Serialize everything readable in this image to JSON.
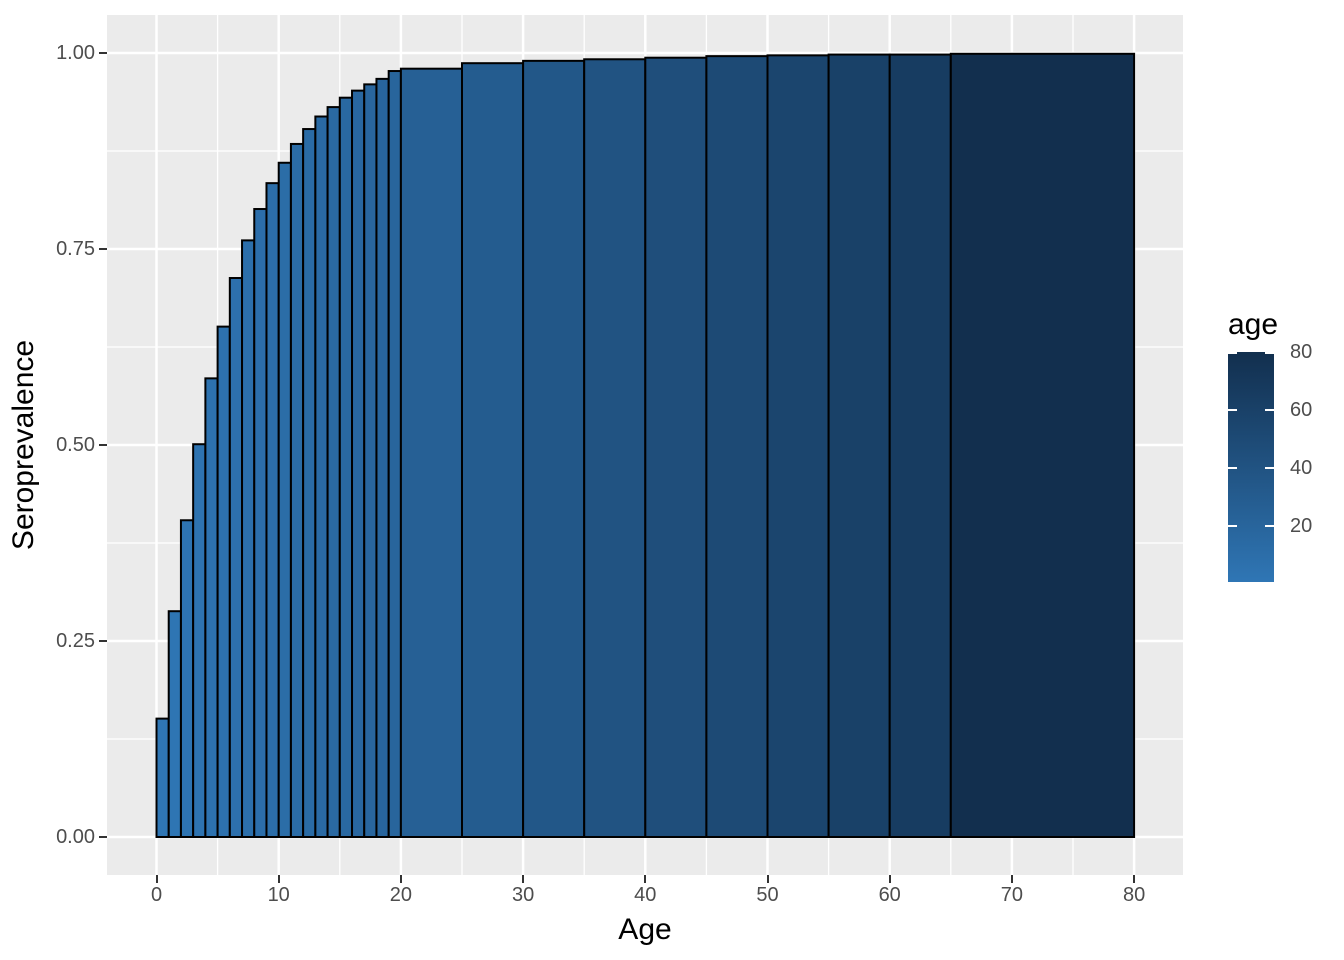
{
  "chart_data": {
    "type": "bar",
    "title": "",
    "xlabel": "Age",
    "ylabel": "Seroprevalence",
    "x_major_ticks": [
      0,
      10,
      20,
      30,
      40,
      50,
      60,
      70,
      80
    ],
    "x_tick_labels": [
      "0",
      "10",
      "20",
      "30",
      "40",
      "50",
      "60",
      "70",
      "80"
    ],
    "x_minor_ticks": [
      5,
      15,
      25,
      35,
      45,
      55,
      65,
      75
    ],
    "y_major_ticks": [
      0,
      0.25,
      0.5,
      0.75,
      1.0
    ],
    "y_tick_labels": [
      "0.00",
      "0.25",
      "0.50",
      "0.75",
      "1.00"
    ],
    "y_minor_ticks": [
      0.125,
      0.375,
      0.625,
      0.875
    ],
    "xlim": [
      -4,
      84
    ],
    "ylim": [
      -0.05,
      1.05
    ],
    "grid": "on",
    "bars": [
      {
        "x0": 0,
        "x1": 1,
        "value": 0.151
      },
      {
        "x0": 1,
        "x1": 2,
        "value": 0.288
      },
      {
        "x0": 2,
        "x1": 3,
        "value": 0.404
      },
      {
        "x0": 3,
        "x1": 4,
        "value": 0.501
      },
      {
        "x0": 4,
        "x1": 5,
        "value": 0.585
      },
      {
        "x0": 5,
        "x1": 6,
        "value": 0.651
      },
      {
        "x0": 6,
        "x1": 7,
        "value": 0.713
      },
      {
        "x0": 7,
        "x1": 8,
        "value": 0.761
      },
      {
        "x0": 8,
        "x1": 9,
        "value": 0.801
      },
      {
        "x0": 9,
        "x1": 10,
        "value": 0.834
      },
      {
        "x0": 10,
        "x1": 11,
        "value": 0.86
      },
      {
        "x0": 11,
        "x1": 12,
        "value": 0.884
      },
      {
        "x0": 12,
        "x1": 13,
        "value": 0.903
      },
      {
        "x0": 13,
        "x1": 14,
        "value": 0.919
      },
      {
        "x0": 14,
        "x1": 15,
        "value": 0.931
      },
      {
        "x0": 15,
        "x1": 16,
        "value": 0.943
      },
      {
        "x0": 16,
        "x1": 17,
        "value": 0.952
      },
      {
        "x0": 17,
        "x1": 18,
        "value": 0.96
      },
      {
        "x0": 18,
        "x1": 19,
        "value": 0.967
      },
      {
        "x0": 19,
        "x1": 20,
        "value": 0.977
      },
      {
        "x0": 20,
        "x1": 25,
        "value": 0.98
      },
      {
        "x0": 25,
        "x1": 30,
        "value": 0.987
      },
      {
        "x0": 30,
        "x1": 35,
        "value": 0.99
      },
      {
        "x0": 35,
        "x1": 40,
        "value": 0.992
      },
      {
        "x0": 40,
        "x1": 45,
        "value": 0.994
      },
      {
        "x0": 45,
        "x1": 50,
        "value": 0.996
      },
      {
        "x0": 50,
        "x1": 55,
        "value": 0.997
      },
      {
        "x0": 55,
        "x1": 60,
        "value": 0.998
      },
      {
        "x0": 60,
        "x1": 65,
        "value": 0.998
      },
      {
        "x0": 65,
        "x1": 80,
        "value": 0.999
      }
    ],
    "legend": {
      "title": "age",
      "position": "right",
      "tick_values": [
        20,
        40,
        60,
        80
      ],
      "tick_labels": [
        "20",
        "40",
        "60",
        "80"
      ],
      "domain": [
        0.5,
        80
      ]
    },
    "colors": {
      "fill_low": "#2F76B5",
      "fill_high": "#122F4E",
      "bar_stroke": "#000000",
      "panel_background": "#EBEBEB",
      "gridline": "#FFFFFF",
      "tick_text": "#4D4D4D",
      "title_text": "#000000"
    }
  }
}
